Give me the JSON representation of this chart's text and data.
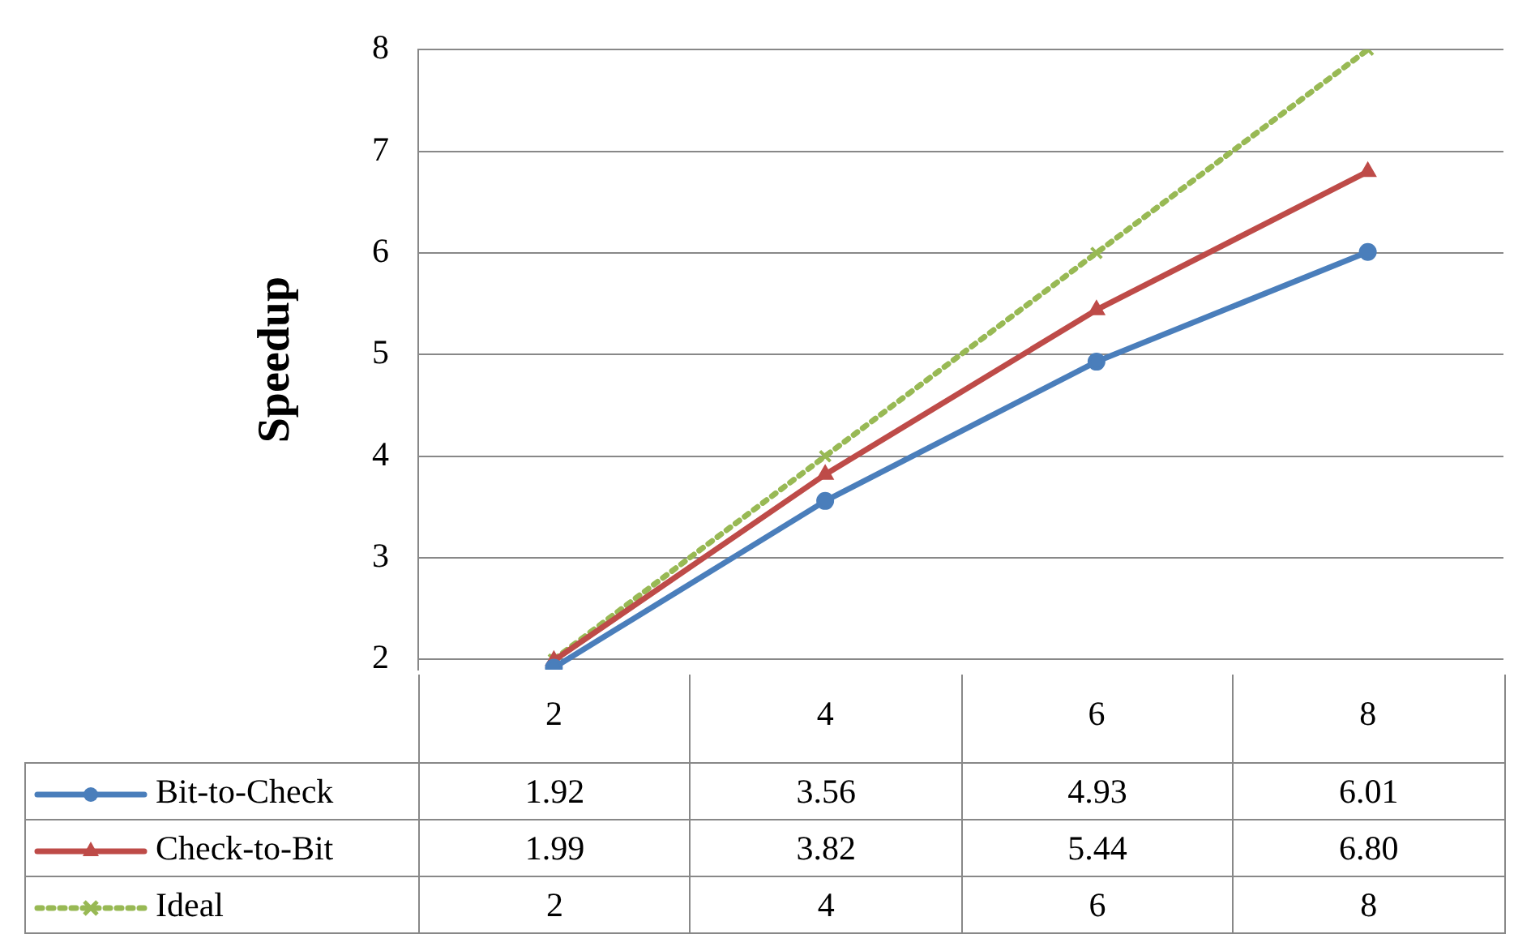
{
  "chart_data": {
    "type": "line",
    "ylabel": "Speedup",
    "categories": [
      "2",
      "4",
      "6",
      "8"
    ],
    "series": [
      {
        "name": "Bit-to-Check",
        "color": "#4a7ebb",
        "marker": "circle",
        "line_style": "solid",
        "values": [
          1.92,
          3.56,
          4.93,
          6.01
        ],
        "value_labels": [
          "1.92",
          "3.56",
          "4.93",
          "6.01"
        ]
      },
      {
        "name": "Check-to-Bit",
        "color": "#be4b48",
        "marker": "triangle",
        "line_style": "solid",
        "values": [
          1.99,
          3.82,
          5.44,
          6.8
        ],
        "value_labels": [
          "1.99",
          "3.82",
          "5.44",
          "6.80"
        ]
      },
      {
        "name": "Ideal",
        "color": "#98b954",
        "marker": "cross",
        "line_style": "dotted",
        "values": [
          2,
          4,
          6,
          8
        ],
        "value_labels": [
          "2",
          "4",
          "6",
          "8"
        ]
      }
    ],
    "ylim": [
      1.9,
      8
    ],
    "yticks": [
      2,
      3,
      4,
      5,
      6,
      7,
      8
    ],
    "grid": "y",
    "legend": "bottom left"
  }
}
